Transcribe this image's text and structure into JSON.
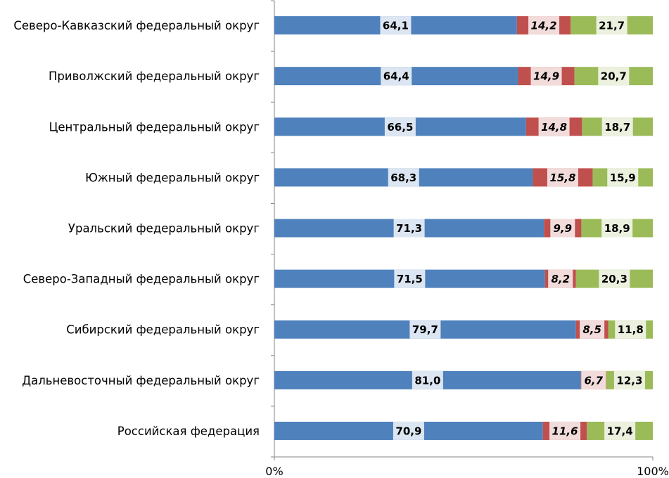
{
  "chart_data": {
    "type": "bar",
    "orientation": "horizontal",
    "stacked": "percent",
    "categories": [
      "Северо-Кавказский федеральный округ",
      "Приволжский федеральный округ",
      "Центральный федеральный округ",
      "Южный федеральный округ",
      "Уральский федеральный округ",
      "Северо-Западный федеральный округ",
      "Сибирский федеральный округ",
      "Дальневосточный федеральный округ",
      "Российская федерация"
    ],
    "series": [
      {
        "color": "#4f81bd",
        "label_fill": "#dce6f2",
        "label_italic": false,
        "values": [
          64.1,
          64.4,
          66.5,
          68.3,
          71.3,
          71.5,
          79.7,
          81.0,
          70.9
        ],
        "labels": [
          "64,1",
          "64,4",
          "66,5",
          "68,3",
          "71,3",
          "71,5",
          "79,7",
          "81,0",
          "70,9"
        ]
      },
      {
        "color": "#c0504d",
        "label_fill": "#f2dcdb",
        "label_italic": true,
        "values": [
          14.2,
          14.9,
          14.8,
          15.8,
          9.9,
          8.2,
          8.5,
          6.7,
          11.6
        ],
        "labels": [
          "14,2",
          "14,9",
          "14,8",
          "15,8",
          "9,9",
          "8,2",
          "8,5",
          "6,7",
          "11,6"
        ]
      },
      {
        "color": "#9bbb59",
        "label_fill": "#ebf1de",
        "label_italic": false,
        "values": [
          21.7,
          20.7,
          18.7,
          15.9,
          18.9,
          20.3,
          11.8,
          12.3,
          17.4
        ],
        "labels": [
          "21,7",
          "20,7",
          "18,7",
          "15,9",
          "18,9",
          "20,3",
          "11,8",
          "12,3",
          "17,4"
        ]
      }
    ],
    "x_ticks": [
      "0%",
      "100%"
    ],
    "xlim": [
      0,
      100
    ],
    "grid": false,
    "legend": "none"
  }
}
